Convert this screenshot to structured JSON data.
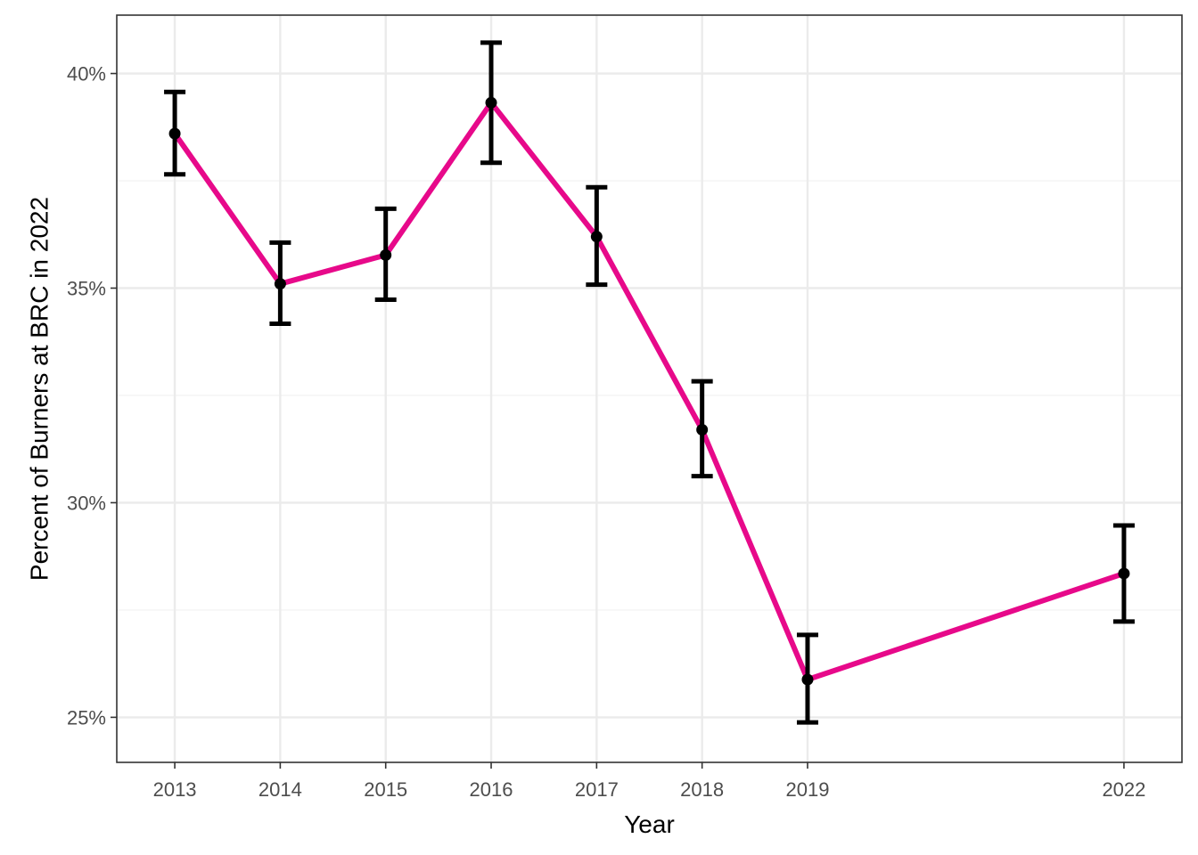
{
  "chart_data": {
    "type": "line",
    "title": "",
    "xlabel": "Year",
    "ylabel": "Percent of Burners at BRC in 2022",
    "x": [
      2013,
      2014,
      2015,
      2016,
      2017,
      2018,
      2019,
      2022
    ],
    "x_tick_labels": [
      "2013",
      "2014",
      "2015",
      "2016",
      "2017",
      "2018",
      "2019",
      "2022"
    ],
    "xlim": [
      2012.45,
      2022.55
    ],
    "ylim": [
      0.2395,
      0.4136
    ],
    "y_ticks": [
      0.25,
      0.3,
      0.35,
      0.4
    ],
    "y_tick_labels": [
      "25%",
      "30%",
      "35%",
      "40%"
    ],
    "series": [
      {
        "values": [
          0.386,
          0.351,
          0.3577,
          0.3932,
          0.362,
          0.317,
          0.2588,
          0.2835
        ],
        "error_lower": [
          0.3765,
          0.3417,
          0.3473,
          0.3792,
          0.3508,
          0.3062,
          0.2488,
          0.2723
        ],
        "error_upper": [
          0.3957,
          0.3606,
          0.3685,
          0.4072,
          0.3735,
          0.3283,
          0.2692,
          0.2947
        ]
      }
    ],
    "grid": true,
    "legend": "none",
    "colors": {
      "line": "#e7098a",
      "points": "#000000",
      "error_bars": "#000000",
      "grid": "#ebebeb",
      "panel_border": "#333333"
    }
  }
}
